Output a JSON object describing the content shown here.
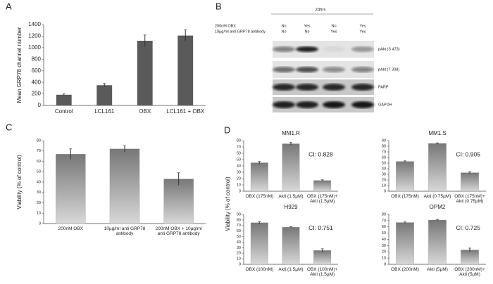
{
  "chart_data": [
    {
      "type": "bar",
      "label": "A",
      "ylabel": "Mean GRP78 channel number",
      "categories": [
        "Control",
        "LCL161",
        "OBX",
        "LCL161 + OBX"
      ],
      "values": [
        185,
        350,
        1120,
        1210
      ],
      "errors": [
        15,
        30,
        100,
        100
      ],
      "color": "#5a5a5a",
      "ylim": [
        0,
        1400
      ],
      "yticks": [
        0,
        200,
        400,
        600,
        800,
        1000,
        1200,
        1400
      ]
    },
    {
      "type": "bar",
      "label": "C",
      "ylabel": "Viability (% of control)",
      "categories": [
        "200nM OBX",
        "10µg/ml anti GRP78 antibody",
        "200nM OBX + 10µg/ml anti GRP78 antibody"
      ],
      "values": [
        67,
        72,
        43
      ],
      "errors": [
        5,
        3,
        6
      ],
      "color": "#9a9a9a",
      "ylim": [
        0,
        80
      ],
      "yticks": [
        0,
        10,
        20,
        30,
        40,
        50,
        60,
        70,
        80
      ]
    },
    {
      "type": "bar",
      "label": "D",
      "ylabel": "Viability (% of control)",
      "title": "MM1.R",
      "annotation": "CI: 0.828",
      "categories": [
        "OBX (175nM)",
        "Akti (1.5µM)",
        "OBX (175nM)+ Akti (1.5µM)"
      ],
      "values": [
        45,
        75,
        17
      ],
      "errors": [
        2,
        2,
        1
      ],
      "color": "#9a9a9a",
      "ylim": [
        0,
        80
      ],
      "yticks": [
        0,
        10,
        20,
        30,
        40,
        50,
        60,
        70,
        80
      ]
    },
    {
      "type": "bar",
      "title": "MM1.S",
      "annotation": "CI: 0.905",
      "categories": [
        "OBX (175nM)",
        "Akti (0.75µM)",
        "OBX (175nM)+ Akti (0.75µM)"
      ],
      "values": [
        53,
        85,
        33
      ],
      "errors": [
        1,
        1,
        2
      ],
      "color": "#9a9a9a",
      "ylim": [
        0,
        90
      ],
      "yticks": [
        0,
        10,
        20,
        30,
        40,
        50,
        60,
        70,
        80,
        90
      ]
    },
    {
      "type": "bar",
      "title": "H929",
      "annotation": "CI: 0.751",
      "categories": [
        "OBX (100nM)",
        "Akti (1.5µM)",
        "OBX (100nM)+ Akti (1.5µM)"
      ],
      "values": [
        75,
        67,
        25
      ],
      "errors": [
        2,
        1,
        3
      ],
      "color": "#9a9a9a",
      "ylim": [
        0,
        90
      ],
      "yticks": [
        0,
        10,
        20,
        30,
        40,
        50,
        60,
        70,
        80,
        90
      ]
    },
    {
      "type": "bar",
      "title": "OPM2",
      "annotation": "CI: 0.725",
      "categories": [
        "OBX (200nM)",
        "Akti (5µM)",
        "OBX (200nM)+ Akti (5µM)"
      ],
      "values": [
        67,
        71,
        23
      ],
      "errors": [
        1,
        1,
        3
      ],
      "color": "#9a9a9a",
      "ylim": [
        0,
        80
      ],
      "yticks": [
        0,
        10,
        20,
        30,
        40,
        50,
        60,
        70,
        80
      ]
    }
  ],
  "western_blot": {
    "label": "B",
    "time": "24hrs",
    "conditions": [
      "200nM OBX",
      "10µg/ml anti GRP78 antibody"
    ],
    "lanes": [
      [
        "No",
        "No"
      ],
      [
        "Yes",
        "No"
      ],
      [
        "No",
        "Yes"
      ],
      [
        "Yes",
        "Yes"
      ]
    ],
    "bands": [
      "pAkt (S 473)",
      "pAkt (T 308)",
      "PARP",
      "GAPDH"
    ]
  }
}
